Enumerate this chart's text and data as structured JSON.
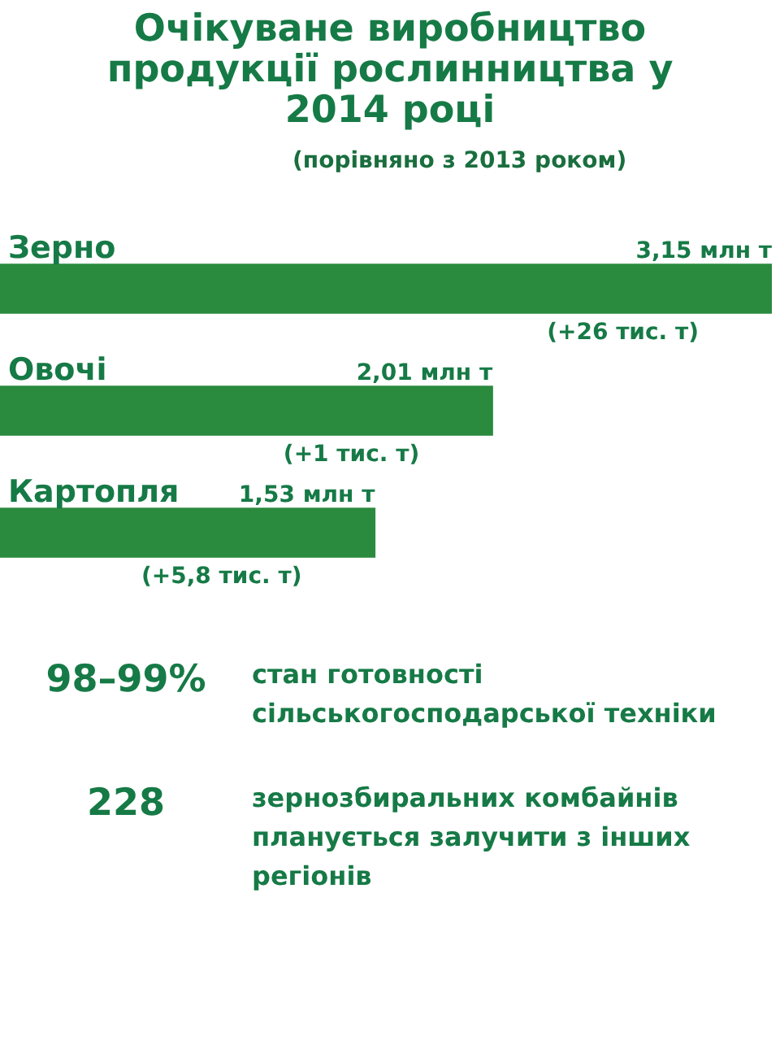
{
  "chart_data": {
    "type": "bar",
    "orientation": "horizontal",
    "title": "Очікуване виробництво продукції рослинництва у 2014 році",
    "subtitle": "(порівняно з 2013 роком)",
    "categories": [
      "Зерно",
      "Овочі",
      "Картопля"
    ],
    "values": [
      3.15,
      2.01,
      1.53
    ],
    "color": "#2a8a3e",
    "value_labels": [
      "3,15 млн т",
      "2,01 млн т",
      "1,53 млн т"
    ],
    "annotations": [
      "(+26 тис. т)",
      "(+1 тис. т)",
      "(+5,8 тис. т)",
      "98–99%",
      "стан готовності сільськогосподарської техніки",
      "228",
      "зернозбиральних комбайнів планується залучити з інших регіонів"
    ],
    "legend": false
  }
}
